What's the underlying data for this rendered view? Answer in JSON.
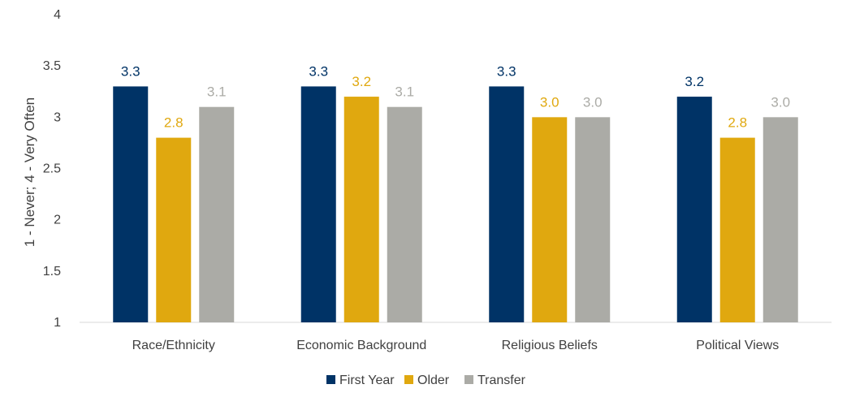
{
  "chart_data": {
    "type": "bar",
    "categories": [
      "Race/Ethnicity",
      "Economic Background",
      "Religious Beliefs",
      "Political Views"
    ],
    "series": [
      {
        "name": "First Year",
        "color": "#003366",
        "values": [
          3.3,
          3.3,
          3.3,
          3.2
        ],
        "labels": [
          "3.3",
          "3.3",
          "3.3",
          "3.2"
        ]
      },
      {
        "name": "Older",
        "color": "#E0A80F",
        "values": [
          2.8,
          3.2,
          3.0,
          2.8
        ],
        "labels": [
          "2.8",
          "3.2",
          "3.0",
          "2.8"
        ]
      },
      {
        "name": "Transfer",
        "color": "#ABABA6",
        "values": [
          3.1,
          3.1,
          3.0,
          3.0
        ],
        "labels": [
          "3.1",
          "3.1",
          "3.0",
          "3.0"
        ]
      }
    ],
    "ylabel": "1 - Never; 4 - Very Often",
    "ylim": [
      1,
      4
    ],
    "yticks": [
      "1",
      "1.5",
      "2",
      "2.5",
      "3",
      "3.5",
      "4"
    ],
    "grid": false,
    "legend": "bottom"
  }
}
